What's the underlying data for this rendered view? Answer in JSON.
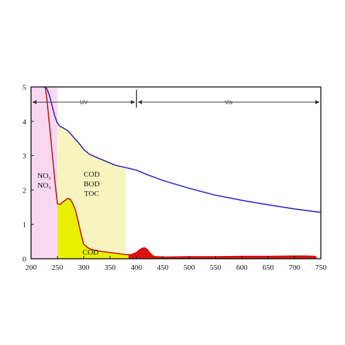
{
  "chart_data": {
    "type": "line",
    "title": "",
    "xlabel": "",
    "ylabel": "",
    "xlim": [
      200,
      750
    ],
    "ylim": [
      0,
      5
    ],
    "x_ticks": [
      200,
      250,
      300,
      350,
      400,
      450,
      500,
      550,
      600,
      650,
      700,
      750
    ],
    "y_ticks": [
      0,
      1,
      2,
      3,
      4,
      5
    ],
    "grid": false,
    "bands": [
      {
        "label": "UV",
        "from": 200,
        "to": 400
      },
      {
        "label": "Vis",
        "from": 400,
        "to": 750
      }
    ],
    "regions": [
      {
        "labels": [
          "NO₂",
          "NO₃"
        ],
        "x_from": 200,
        "x_to": 250,
        "color": "#f8d8f0"
      },
      {
        "labels": [
          "COD",
          "BOD",
          "TOC"
        ],
        "x_from": 250,
        "x_to": 380,
        "color": "#f8f4c0"
      }
    ],
    "fill_label": "COD",
    "colors": {
      "total_curve": "#2a22c8",
      "component_curve": "#c01010",
      "uv_fill": "#e8f000",
      "vis_fill": "#e01010"
    },
    "series": [
      {
        "x": [
          225,
          230,
          235,
          240,
          245,
          250,
          255,
          260,
          270,
          280,
          290,
          300,
          310,
          320,
          340,
          360,
          380,
          400,
          420,
          450,
          500,
          550,
          600,
          650,
          700,
          750
        ],
        "y": [
          5.0,
          4.95,
          4.75,
          4.45,
          4.15,
          3.95,
          3.85,
          3.82,
          3.72,
          3.55,
          3.38,
          3.18,
          3.05,
          2.98,
          2.85,
          2.72,
          2.65,
          2.58,
          2.45,
          2.28,
          2.05,
          1.85,
          1.7,
          1.57,
          1.45,
          1.35
        ]
      },
      {
        "x": [
          227,
          230,
          235,
          240,
          245,
          250,
          255,
          260,
          265,
          270,
          275,
          280,
          285,
          290,
          295,
          300,
          310,
          320,
          330,
          340,
          350,
          360,
          370,
          380,
          390,
          400,
          405,
          410,
          415,
          420,
          425,
          430,
          435,
          440,
          450,
          500,
          550,
          600,
          650,
          700,
          720,
          740
        ],
        "y": [
          5.0,
          4.65,
          3.9,
          3.1,
          2.3,
          1.6,
          1.58,
          1.65,
          1.7,
          1.76,
          1.72,
          1.58,
          1.38,
          1.05,
          0.72,
          0.42,
          0.3,
          0.25,
          0.22,
          0.2,
          0.18,
          0.16,
          0.14,
          0.12,
          0.12,
          0.18,
          0.25,
          0.3,
          0.32,
          0.28,
          0.18,
          0.1,
          0.06,
          0.06,
          0.05,
          0.06,
          0.06,
          0.07,
          0.07,
          0.08,
          0.08,
          0.07
        ]
      }
    ]
  }
}
